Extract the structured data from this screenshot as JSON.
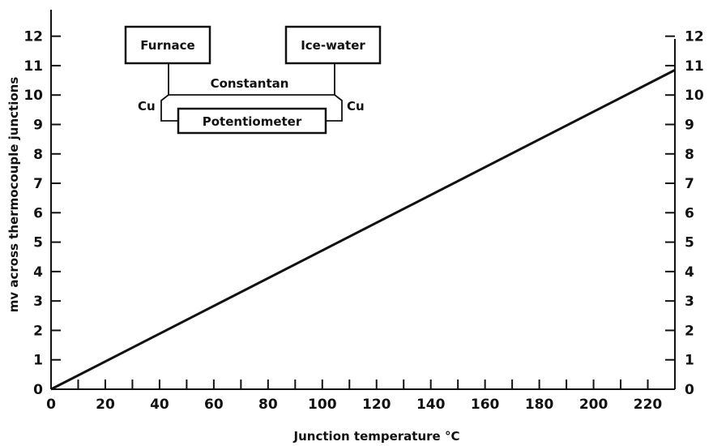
{
  "chart_data": {
    "type": "line",
    "title": "",
    "xlabel": "Junction temperature °C",
    "ylabel": "mv across thermocouple junctions",
    "xlim": [
      0,
      230
    ],
    "ylim": [
      0,
      12.9
    ],
    "x_ticks": [
      0,
      20,
      40,
      60,
      80,
      100,
      120,
      140,
      160,
      180,
      200,
      220
    ],
    "x_minor_step": 10,
    "y_ticks_left": [
      0,
      1,
      2,
      3,
      4,
      5,
      6,
      7,
      8,
      9,
      10,
      11,
      12
    ],
    "y_ticks_right": [
      0,
      1,
      2,
      3,
      4,
      5,
      6,
      7,
      8,
      9,
      10,
      11,
      12
    ],
    "grid": false,
    "series": [
      {
        "x": [
          0,
          230
        ],
        "y": [
          0,
          10.85
        ]
      }
    ],
    "colors": {
      "line": "#111111",
      "axes": "#111111"
    }
  },
  "diagram": {
    "furnace_label": "Furnace",
    "icewater_label": "Ice-water",
    "constantan_label": "Constantan",
    "potentiometer_label": "Potentiometer",
    "cu_left_label": "Cu",
    "cu_right_label": "Cu"
  }
}
